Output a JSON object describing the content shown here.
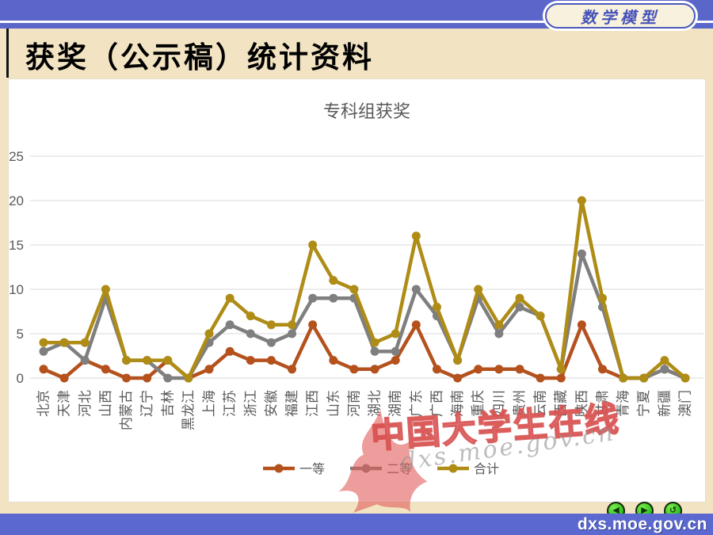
{
  "header": {
    "logo_text": "数学模型",
    "title": "获奖（公示稿）统计资料"
  },
  "chart_data": {
    "type": "line",
    "title": "专科组获奖",
    "categories": [
      "北京",
      "天津",
      "河北",
      "山西",
      "内蒙古",
      "辽宁",
      "吉林",
      "黑龙江",
      "上海",
      "江苏",
      "浙江",
      "安徽",
      "福建",
      "江西",
      "山东",
      "河南",
      "湖北",
      "湖南",
      "广东",
      "广西",
      "海南",
      "重庆",
      "四川",
      "贵州",
      "云南",
      "西藏",
      "陕西",
      "甘肃",
      "青海",
      "宁夏",
      "新疆",
      "澳门"
    ],
    "series": [
      {
        "name": "一等",
        "color": "#b4511d",
        "values": [
          1,
          0,
          2,
          1,
          0,
          0,
          2,
          0,
          1,
          3,
          2,
          2,
          1,
          6,
          2,
          1,
          1,
          2,
          6,
          1,
          0,
          1,
          1,
          1,
          0,
          0,
          6,
          1,
          0,
          0,
          1,
          0
        ]
      },
      {
        "name": "二等",
        "color": "#7f7f7f",
        "values": [
          3,
          4,
          2,
          9,
          2,
          2,
          0,
          0,
          4,
          6,
          5,
          4,
          5,
          9,
          9,
          9,
          3,
          3,
          10,
          7,
          2,
          9,
          5,
          8,
          7,
          1,
          14,
          8,
          0,
          0,
          1,
          0
        ]
      },
      {
        "name": "合计",
        "color": "#ae8c15",
        "values": [
          4,
          4,
          4,
          10,
          2,
          2,
          2,
          0,
          5,
          9,
          7,
          6,
          6,
          15,
          11,
          10,
          4,
          5,
          16,
          8,
          2,
          10,
          6,
          9,
          7,
          1,
          20,
          9,
          0,
          0,
          2,
          0
        ]
      }
    ],
    "ylim": [
      0,
      25
    ],
    "yticks": [
      0,
      5,
      10,
      15,
      20,
      25
    ],
    "grid": true,
    "legend_position": "bottom",
    "axis_color": "#595959",
    "grid_color": "#d9d9d9"
  },
  "watermark": {
    "text": "中国大学生在线",
    "url": "dxs.moe.gov.cn"
  },
  "footer": {
    "url": "dxs.moe.gov.cn"
  },
  "nav": {
    "back": "◀",
    "forward": "▶",
    "return": "↺"
  }
}
